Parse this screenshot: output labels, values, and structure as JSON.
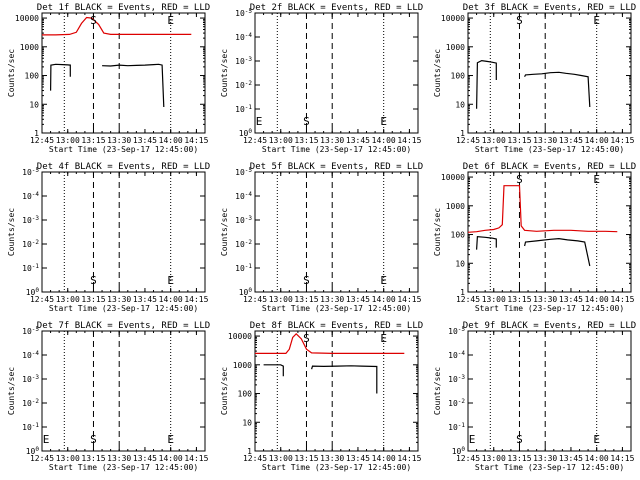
{
  "chart_data": {
    "type": "line",
    "xlabel": "Start Time (23-Sep-17 12:45:00)",
    "ylabel": "Counts/sec",
    "x_ticks": [
      "12:45",
      "13:00",
      "13:15",
      "13:30",
      "13:45",
      "14:00",
      "14:15"
    ],
    "x_range_minutes_after_1245": [
      0,
      95
    ],
    "y_scale": "log",
    "y_range": [
      1,
      15000
    ],
    "y_ticks_standard": [
      "1",
      "10",
      "100",
      "1000",
      "10000"
    ],
    "y_ticks_empty_panel": [
      "10^0",
      "10^-1",
      "10^-2",
      "10^-3",
      "10^-4",
      "10^-5"
    ],
    "marker_lines": {
      "dotted": [
        "12:58",
        "14:00"
      ],
      "dashed": [
        "13:15",
        "13:30"
      ]
    },
    "colors": {
      "events": "#000000",
      "lld": "#dd0000",
      "axes": "#000000"
    },
    "panels": [
      {
        "title": "Det 1f BLACK = Events, RED = LLD",
        "empty": false,
        "markers": [
          {
            "label": "S",
            "time": "13:15"
          },
          {
            "label": "E",
            "time": "14:00"
          }
        ],
        "series": [
          {
            "name": "LLD",
            "color": "#dd0000",
            "points": [
              [
                0,
                2600
              ],
              [
                8,
                2600
              ],
              [
                16,
                2700
              ],
              [
                20,
                3200
              ],
              [
                23,
                6500
              ],
              [
                26,
                10500
              ],
              [
                29,
                10000
              ],
              [
                33,
                6000
              ],
              [
                36,
                3000
              ],
              [
                40,
                2700
              ],
              [
                50,
                2700
              ],
              [
                60,
                2700
              ],
              [
                70,
                2700
              ],
              [
                80,
                2700
              ],
              [
                87,
                2700
              ]
            ]
          },
          {
            "name": "Events",
            "color": "#000000",
            "points": [
              [
                5,
                30
              ],
              [
                5.2,
                230
              ],
              [
                8,
                245
              ],
              [
                12,
                240
              ],
              [
                15,
                235
              ],
              [
                16.5,
                230
              ],
              [
                16.5,
                90
              ]
            ]
          },
          {
            "name": "Events",
            "color": "#000000",
            "points": [
              [
                35,
                220
              ],
              [
                40,
                215
              ],
              [
                45,
                230
              ],
              [
                50,
                220
              ],
              [
                55,
                225
              ],
              [
                60,
                230
              ],
              [
                65,
                240
              ],
              [
                68,
                245
              ],
              [
                70,
                230
              ],
              [
                71,
                8
              ]
            ]
          }
        ]
      },
      {
        "title": "Det 2f BLACK = Events, RED = LLD",
        "empty": true,
        "markers": [
          {
            "label": "E",
            "time": "12:45"
          },
          {
            "label": "S",
            "time": "13:15"
          },
          {
            "label": "E",
            "time": "14:00"
          }
        ],
        "series": []
      },
      {
        "title": "Det 3f BLACK = Events, RED = LLD",
        "empty": false,
        "markers": [
          {
            "label": "S",
            "time": "13:15"
          },
          {
            "label": "E",
            "time": "14:00"
          }
        ],
        "series": [
          {
            "name": "Events",
            "color": "#000000",
            "points": [
              [
                5,
                7
              ],
              [
                5.5,
                280
              ],
              [
                8,
                330
              ],
              [
                11,
                310
              ],
              [
                14,
                290
              ],
              [
                16.5,
                270
              ],
              [
                16.5,
                70
              ]
            ]
          },
          {
            "name": "Events",
            "color": "#000000",
            "points": [
              [
                33,
                90
              ],
              [
                33.5,
                105
              ],
              [
                38,
                110
              ],
              [
                43,
                115
              ],
              [
                48,
                125
              ],
              [
                53,
                130
              ],
              [
                57,
                120
              ],
              [
                62,
                110
              ],
              [
                66,
                100
              ],
              [
                70,
                90
              ],
              [
                71,
                8
              ]
            ]
          }
        ]
      },
      {
        "title": "Det 4f BLACK = Events, RED = LLD",
        "empty": true,
        "markers": [
          {
            "label": "S",
            "time": "13:15"
          },
          {
            "label": "E",
            "time": "14:00"
          }
        ],
        "series": []
      },
      {
        "title": "Det 5f BLACK = Events, RED = LLD",
        "empty": true,
        "markers": [
          {
            "label": "S",
            "time": "13:15"
          },
          {
            "label": "E",
            "time": "14:00"
          }
        ],
        "series": []
      },
      {
        "title": "Det 6f BLACK = Events, RED = LLD",
        "empty": false,
        "markers": [
          {
            "label": "S",
            "time": "13:15"
          },
          {
            "label": "E",
            "time": "14:00"
          }
        ],
        "series": [
          {
            "name": "LLD",
            "color": "#dd0000",
            "points": [
              [
                0,
                120
              ],
              [
                5,
                125
              ],
              [
                10,
                140
              ],
              [
                15,
                150
              ],
              [
                18,
                170
              ],
              [
                20,
                220
              ],
              [
                21,
                5000
              ],
              [
                30,
                5000
              ],
              [
                31,
                200
              ],
              [
                33,
                140
              ],
              [
                40,
                130
              ],
              [
                50,
                140
              ],
              [
                60,
                140
              ],
              [
                70,
                130
              ],
              [
                80,
                130
              ],
              [
                87,
                125
              ]
            ]
          },
          {
            "name": "Events",
            "color": "#000000",
            "points": [
              [
                5,
                30
              ],
              [
                5.5,
                85
              ],
              [
                10,
                80
              ],
              [
                14,
                75
              ],
              [
                16.5,
                70
              ],
              [
                16.5,
                35
              ]
            ]
          },
          {
            "name": "Events",
            "color": "#000000",
            "points": [
              [
                33,
                40
              ],
              [
                33.5,
                55
              ],
              [
                40,
                60
              ],
              [
                48,
                68
              ],
              [
                53,
                72
              ],
              [
                58,
                65
              ],
              [
                64,
                60
              ],
              [
                68,
                55
              ],
              [
                71,
                8
              ]
            ]
          }
        ]
      },
      {
        "title": "Det 7f BLACK = Events, RED = LLD",
        "empty": true,
        "markers": [
          {
            "label": "E",
            "time": "12:45"
          },
          {
            "label": "S",
            "time": "13:15"
          },
          {
            "label": "E",
            "time": "14:00"
          }
        ],
        "series": []
      },
      {
        "title": "Det 8f BLACK = Events, RED = LLD",
        "empty": false,
        "markers": [
          {
            "label": "S",
            "time": "13:15"
          },
          {
            "label": "E",
            "time": "14:00"
          }
        ],
        "series": [
          {
            "name": "LLD",
            "color": "#dd0000",
            "points": [
              [
                0,
                2500
              ],
              [
                10,
                2500
              ],
              [
                18,
                2500
              ],
              [
                20,
                3500
              ],
              [
                22,
                9000
              ],
              [
                24,
                12000
              ],
              [
                27,
                8000
              ],
              [
                30,
                3500
              ],
              [
                33,
                2600
              ],
              [
                45,
                2500
              ],
              [
                60,
                2500
              ],
              [
                75,
                2500
              ],
              [
                87,
                2500
              ]
            ]
          },
          {
            "name": "Events",
            "color": "#000000",
            "points": [
              [
                5,
                1000
              ],
              [
                10,
                1000
              ],
              [
                15,
                1000
              ],
              [
                16.5,
                900
              ],
              [
                16.5,
                400
              ]
            ]
          },
          {
            "name": "Events",
            "color": "#000000",
            "points": [
              [
                33,
                700
              ],
              [
                33.5,
                900
              ],
              [
                40,
                880
              ],
              [
                48,
                900
              ],
              [
                56,
                920
              ],
              [
                62,
                900
              ],
              [
                68,
                880
              ],
              [
                71,
                870
              ],
              [
                71,
                100
              ]
            ]
          }
        ]
      },
      {
        "title": "Det 9f BLACK = Events, RED = LLD",
        "empty": true,
        "markers": [
          {
            "label": "E",
            "time": "12:45"
          },
          {
            "label": "S",
            "time": "13:15"
          },
          {
            "label": "E",
            "time": "14:00"
          }
        ],
        "series": []
      }
    ]
  }
}
